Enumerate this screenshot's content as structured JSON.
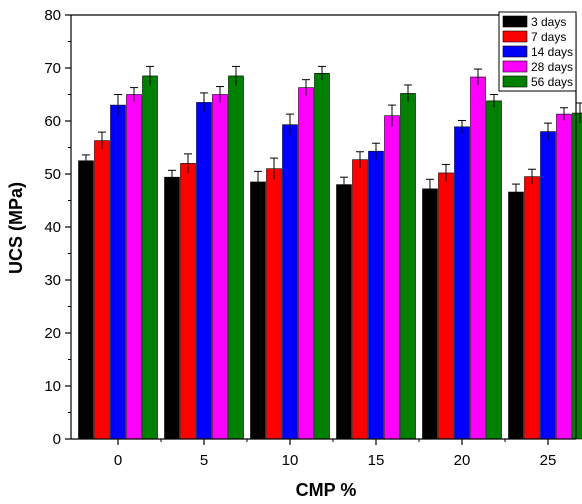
{
  "chart_data": {
    "type": "bar",
    "title": "",
    "xlabel": "CMP %",
    "ylabel": "UCS (MPa)",
    "ylim": [
      0,
      80
    ],
    "yticks": [
      0,
      10,
      20,
      30,
      40,
      50,
      60,
      70,
      80
    ],
    "categories": [
      "0",
      "5",
      "10",
      "15",
      "20",
      "25"
    ],
    "grid": false,
    "legend_position": "top-right",
    "series": [
      {
        "name": "3 days",
        "color": "#000000",
        "values": [
          52.5,
          49.4,
          48.5,
          48.0,
          47.2,
          46.6
        ],
        "errors": [
          1.1,
          1.3,
          2.0,
          1.4,
          1.8,
          1.5
        ]
      },
      {
        "name": "7 days",
        "color": "#ff0000",
        "values": [
          56.3,
          52.0,
          51.0,
          52.7,
          50.2,
          49.5
        ],
        "errors": [
          1.6,
          1.8,
          2.0,
          1.5,
          1.6,
          1.4
        ]
      },
      {
        "name": "14 days",
        "color": "#0000ff",
        "values": [
          63.0,
          63.5,
          59.3,
          54.3,
          58.9,
          58.0
        ],
        "errors": [
          2.0,
          1.8,
          2.0,
          1.5,
          1.2,
          1.6
        ]
      },
      {
        "name": "28 days",
        "color": "#ff00ff",
        "values": [
          65.0,
          65.0,
          66.3,
          61.0,
          68.3,
          61.3
        ],
        "errors": [
          1.3,
          1.5,
          1.5,
          2.0,
          1.5,
          1.2
        ]
      },
      {
        "name": "56 days",
        "color": "#008000",
        "values": [
          68.5,
          68.5,
          69.0,
          65.2,
          63.8,
          61.5
        ],
        "errors": [
          1.8,
          1.8,
          1.3,
          1.6,
          1.2,
          1.9
        ]
      }
    ]
  }
}
